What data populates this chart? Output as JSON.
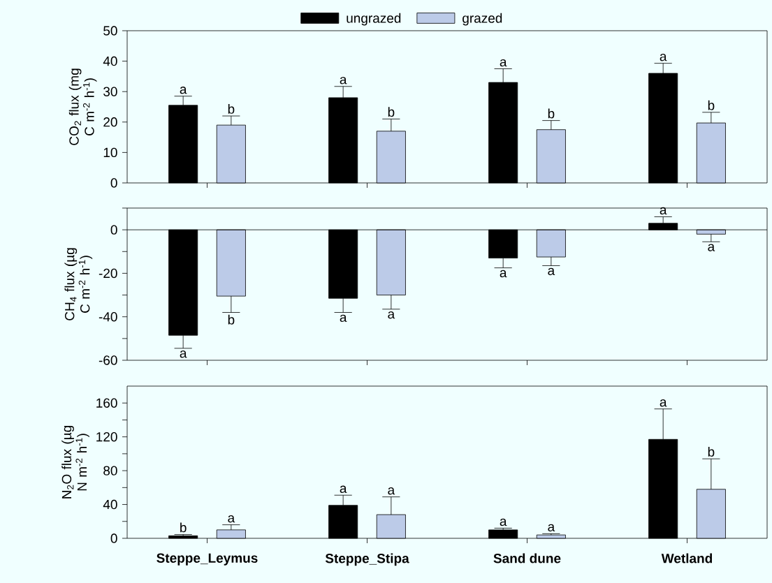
{
  "chart_data": [
    {
      "type": "bar",
      "categories": [
        null,
        null,
        null,
        null
      ],
      "ylabel": "CO$_{2}$ flux (mg C m$^{-2}$ h$^{-1}$)",
      "ylim": [
        0,
        50
      ],
      "yticks": [
        0,
        10,
        20,
        30,
        40,
        50
      ],
      "tick_labels": "y",
      "legend": "top",
      "series": [
        {
          "name": "ungrazed",
          "color": "#000000",
          "values": [
            25.5,
            28,
            33,
            36
          ],
          "errors": [
            3,
            3.7,
            4.5,
            3.3
          ],
          "value_labels": [
            "a",
            "a",
            "a",
            "a"
          ]
        },
        {
          "name": "grazed",
          "color": "#bccbe8",
          "values": [
            19,
            17,
            17.5,
            19.7
          ],
          "errors": [
            3,
            4,
            3,
            3.5
          ],
          "value_labels": [
            "b",
            "b",
            "b",
            "b"
          ]
        }
      ]
    },
    {
      "type": "bar",
      "categories": [
        null,
        null,
        null,
        null
      ],
      "ylabel": "CH$_{4}$ flux (µg C m$^{-2}$ h$^{-1}$)",
      "ylim": [
        -60,
        10
      ],
      "yticks": [
        -60,
        {
          "value": -50,
          "label": null
        },
        -40,
        {
          "value": -30,
          "label": null
        },
        -20,
        {
          "value": -10,
          "label": null
        },
        0,
        {
          "value": 10,
          "label": null
        }
      ],
      "tick_labels": "y",
      "ref_lines": [
        {
          "axis": "y",
          "value": 0
        }
      ],
      "series": [
        {
          "color": "#000000",
          "values": [
            -48.5,
            -31.5,
            -13,
            3
          ],
          "errors": [
            6,
            6.5,
            4.5,
            3
          ],
          "value_labels": [
            "a",
            "a",
            "a",
            "a"
          ]
        },
        {
          "color": "#bccbe8",
          "values": [
            -30.5,
            -30,
            -12.5,
            -2
          ],
          "errors": [
            7.5,
            6.5,
            4,
            3.5
          ],
          "value_labels": [
            "b",
            "a",
            "a",
            "a"
          ]
        }
      ]
    },
    {
      "type": "bar",
      "categories": [
        "Steppe_Leymus",
        "Steppe_Stipa",
        "Sand dune",
        "Wetland"
      ],
      "ylabel": "N$_{2}$O flux (µg N m$^{-2}$ h$^{-1}$)",
      "ylim": [
        0,
        180
      ],
      "yticks": [
        0,
        {
          "value": 20,
          "label": null
        },
        40,
        {
          "value": 60,
          "label": null
        },
        80,
        {
          "value": 100,
          "label": null
        },
        120,
        {
          "value": 140,
          "label": null
        },
        160
      ],
      "series": [
        {
          "color": "#000000",
          "values": [
            3,
            39,
            10,
            117
          ],
          "errors": [
            1.5,
            12,
            2,
            36
          ],
          "value_labels": [
            "b",
            "a",
            "a",
            "a"
          ]
        },
        {
          "color": "#bccbe8",
          "values": [
            10,
            28,
            4,
            58
          ],
          "errors": [
            6,
            21,
            1.5,
            36
          ],
          "value_labels": [
            "a",
            "a",
            "a",
            "b"
          ]
        }
      ]
    }
  ]
}
